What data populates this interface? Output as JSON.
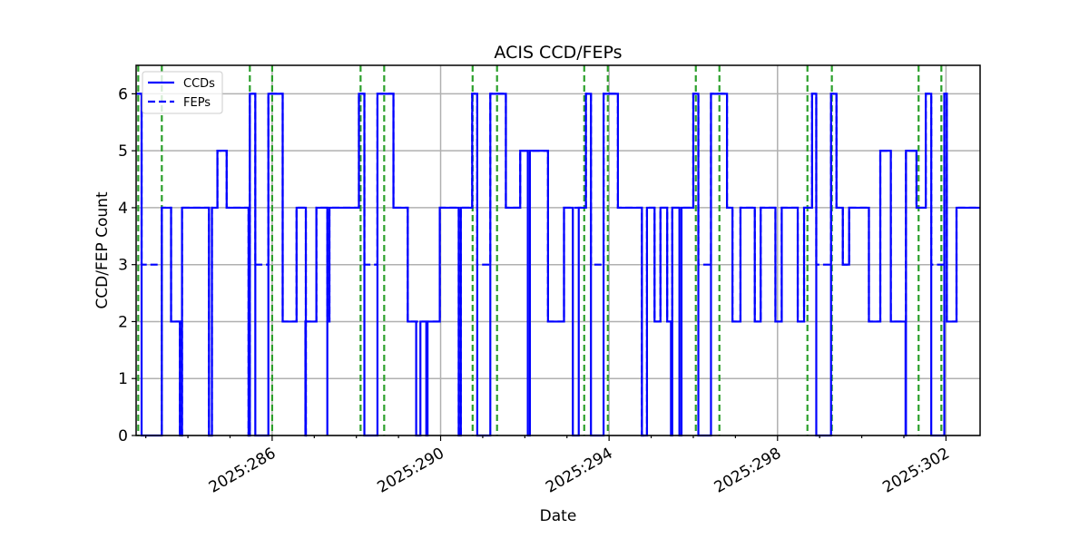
{
  "chart_data": {
    "type": "line",
    "title": "ACIS CCD/FEPs",
    "xlabel": "Date",
    "ylabel": "CCD/FEP Count",
    "xlim": [
      282.77,
      302.81
    ],
    "ylim": [
      0,
      6.5
    ],
    "x_major_ticks": [
      {
        "v": 286,
        "label": "2025:286"
      },
      {
        "v": 290,
        "label": "2025:290"
      },
      {
        "v": 294,
        "label": "2025:294"
      },
      {
        "v": 298,
        "label": "2025:298"
      },
      {
        "v": 302,
        "label": "2025:302"
      }
    ],
    "y_ticks": [
      0,
      1,
      2,
      3,
      4,
      5,
      6
    ],
    "grid": true,
    "legend": {
      "position": "upper left",
      "entries": [
        {
          "label": "CCDs",
          "style": "solid"
        },
        {
          "label": "FEPs",
          "style": "dashed"
        }
      ]
    },
    "colors": {
      "ccd": "#0000ff",
      "fep": "#0000ff",
      "vlines": "#2ca02c",
      "grid": "#b0b0b0"
    },
    "vlines": [
      282.82,
      283.38,
      285.47,
      286.0,
      288.1,
      288.66,
      290.76,
      291.34,
      293.41,
      293.97,
      296.06,
      296.62,
      298.71,
      299.29,
      301.35,
      301.89
    ],
    "series": [
      {
        "name": "CCDs",
        "style": "solid",
        "steps": [
          [
            282.77,
            6
          ],
          [
            282.9,
            0
          ],
          [
            283.38,
            4
          ],
          [
            283.6,
            2
          ],
          [
            283.81,
            0
          ],
          [
            283.86,
            4
          ],
          [
            283.94,
            4
          ],
          [
            284.5,
            0
          ],
          [
            284.57,
            4
          ],
          [
            284.7,
            5
          ],
          [
            284.92,
            4
          ],
          [
            285.44,
            0
          ],
          [
            285.47,
            6
          ],
          [
            285.6,
            0
          ],
          [
            285.91,
            6
          ],
          [
            286.25,
            2
          ],
          [
            286.58,
            4
          ],
          [
            286.8,
            0
          ],
          [
            286.79,
            2
          ],
          [
            287.05,
            4
          ],
          [
            287.31,
            0
          ],
          [
            287.31,
            2
          ],
          [
            287.36,
            4
          ],
          [
            288.06,
            6
          ],
          [
            288.19,
            0
          ],
          [
            288.5,
            6
          ],
          [
            288.88,
            4
          ],
          [
            289.22,
            2
          ],
          [
            289.42,
            0
          ],
          [
            289.52,
            2
          ],
          [
            289.66,
            0
          ],
          [
            289.69,
            2
          ],
          [
            289.98,
            4
          ],
          [
            290.43,
            0
          ],
          [
            290.48,
            4
          ],
          [
            290.75,
            6
          ],
          [
            290.87,
            0
          ],
          [
            291.18,
            6
          ],
          [
            291.55,
            4
          ],
          [
            291.89,
            5
          ],
          [
            292.07,
            0
          ],
          [
            292.12,
            5
          ],
          [
            292.55,
            2
          ],
          [
            292.93,
            4
          ],
          [
            293.14,
            0
          ],
          [
            293.28,
            4
          ],
          [
            293.45,
            6
          ],
          [
            293.57,
            0
          ],
          [
            293.87,
            6
          ],
          [
            294.21,
            4
          ],
          [
            294.78,
            0
          ],
          [
            294.9,
            4
          ],
          [
            295.08,
            2
          ],
          [
            295.22,
            4
          ],
          [
            295.38,
            2
          ],
          [
            295.47,
            0
          ],
          [
            295.5,
            4
          ],
          [
            295.67,
            0
          ],
          [
            295.72,
            4
          ],
          [
            296.0,
            6
          ],
          [
            296.12,
            0
          ],
          [
            296.42,
            6
          ],
          [
            296.8,
            4
          ],
          [
            296.93,
            2
          ],
          [
            297.12,
            4
          ],
          [
            297.46,
            2
          ],
          [
            297.6,
            4
          ],
          [
            297.95,
            2
          ],
          [
            298.1,
            4
          ],
          [
            298.48,
            2
          ],
          [
            298.63,
            4
          ],
          [
            298.82,
            6
          ],
          [
            298.92,
            0
          ],
          [
            299.27,
            6
          ],
          [
            299.4,
            4
          ],
          [
            299.55,
            3
          ],
          [
            299.7,
            4
          ],
          [
            300.17,
            2
          ],
          [
            300.44,
            5
          ],
          [
            300.69,
            2
          ],
          [
            301.04,
            0
          ],
          [
            301.05,
            5
          ],
          [
            301.3,
            4
          ],
          [
            301.52,
            6
          ],
          [
            301.65,
            0
          ],
          [
            301.96,
            6
          ],
          [
            302.02,
            2
          ],
          [
            302.25,
            4
          ],
          [
            302.49,
            4
          ],
          [
            302.81,
            4
          ]
        ]
      },
      {
        "name": "FEPs",
        "style": "dashed",
        "steps": [
          [
            282.77,
            6
          ],
          [
            282.9,
            3
          ],
          [
            283.38,
            4
          ],
          [
            283.6,
            2
          ],
          [
            283.81,
            0
          ],
          [
            283.86,
            4
          ],
          [
            284.5,
            0
          ],
          [
            284.57,
            4
          ],
          [
            284.7,
            5
          ],
          [
            284.92,
            4
          ],
          [
            285.44,
            0
          ],
          [
            285.47,
            6
          ],
          [
            285.6,
            3
          ],
          [
            285.91,
            6
          ],
          [
            286.25,
            2
          ],
          [
            286.58,
            4
          ],
          [
            286.8,
            0
          ],
          [
            286.79,
            2
          ],
          [
            287.05,
            4
          ],
          [
            287.31,
            2
          ],
          [
            287.36,
            4
          ],
          [
            288.06,
            6
          ],
          [
            288.19,
            3
          ],
          [
            288.5,
            6
          ],
          [
            288.88,
            4
          ],
          [
            289.22,
            2
          ],
          [
            289.98,
            4
          ],
          [
            290.43,
            0
          ],
          [
            290.48,
            4
          ],
          [
            290.75,
            6
          ],
          [
            290.87,
            3
          ],
          [
            291.18,
            6
          ],
          [
            291.55,
            4
          ],
          [
            291.89,
            5
          ],
          [
            292.55,
            2
          ],
          [
            292.93,
            4
          ],
          [
            293.45,
            6
          ],
          [
            293.57,
            3
          ],
          [
            293.87,
            6
          ],
          [
            294.21,
            4
          ],
          [
            294.78,
            0
          ],
          [
            294.9,
            4
          ],
          [
            295.08,
            2
          ],
          [
            295.22,
            4
          ],
          [
            295.38,
            2
          ],
          [
            295.5,
            4
          ],
          [
            296.0,
            6
          ],
          [
            296.12,
            3
          ],
          [
            296.42,
            6
          ],
          [
            296.8,
            4
          ],
          [
            296.93,
            2
          ],
          [
            297.12,
            4
          ],
          [
            297.46,
            2
          ],
          [
            297.6,
            4
          ],
          [
            297.95,
            2
          ],
          [
            298.1,
            4
          ],
          [
            298.48,
            2
          ],
          [
            298.63,
            4
          ],
          [
            298.82,
            6
          ],
          [
            298.92,
            3
          ],
          [
            299.27,
            6
          ],
          [
            299.4,
            4
          ],
          [
            299.55,
            3
          ],
          [
            299.7,
            4
          ],
          [
            300.17,
            2
          ],
          [
            300.44,
            5
          ],
          [
            300.69,
            2
          ],
          [
            301.05,
            5
          ],
          [
            301.3,
            4
          ],
          [
            301.52,
            6
          ],
          [
            301.65,
            3
          ],
          [
            301.96,
            6
          ],
          [
            302.02,
            2
          ],
          [
            302.25,
            4
          ],
          [
            302.81,
            4
          ]
        ]
      }
    ]
  }
}
